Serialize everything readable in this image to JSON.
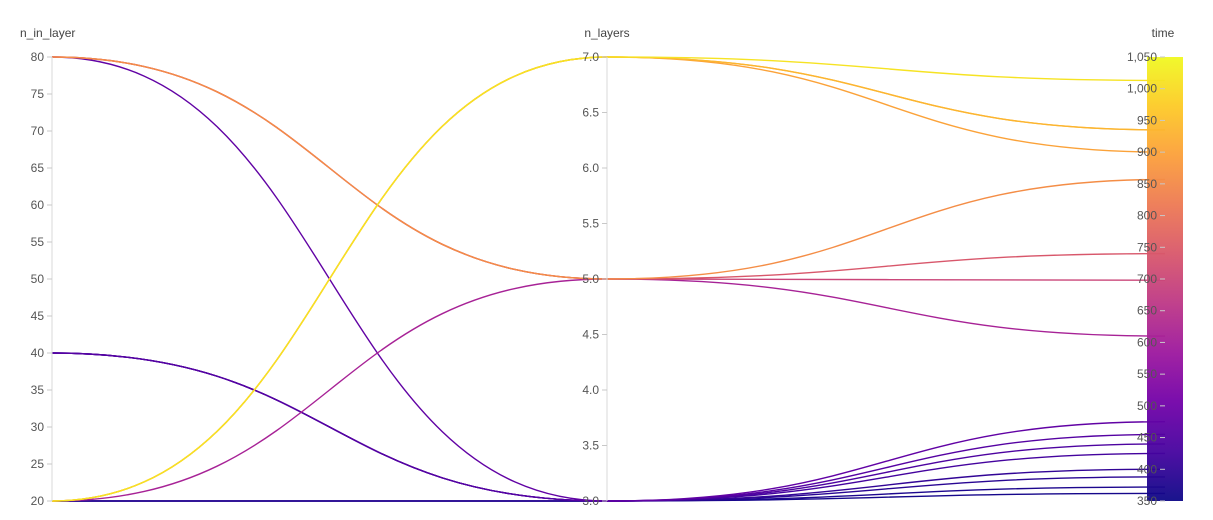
{
  "chart_data": {
    "type": "parallel_coordinates",
    "axes": [
      {
        "name": "n_in_layer",
        "range": [
          20,
          80
        ],
        "ticks": [
          "20",
          "25",
          "30",
          "35",
          "40",
          "45",
          "50",
          "55",
          "60",
          "65",
          "70",
          "75",
          "80"
        ]
      },
      {
        "name": "n_layers",
        "range": [
          3,
          7
        ],
        "ticks": [
          "3.0",
          "3.5",
          "4.0",
          "4.5",
          "5.0",
          "5.5",
          "6.0",
          "6.5",
          "7.0"
        ]
      },
      {
        "name": "time",
        "range": [
          350,
          1050
        ],
        "ticks": [
          "350",
          "400",
          "450",
          "500",
          "550",
          "600",
          "650",
          "700",
          "750",
          "800",
          "850",
          "900",
          "950",
          "1,000",
          "1,050"
        ],
        "colorbar": true
      }
    ],
    "color_scale": [
      "#0d0887",
      "#46039f",
      "#7201a8",
      "#9c179e",
      "#bd3786",
      "#d8576b",
      "#ed7953",
      "#fb9f3a",
      "#fdca26",
      "#f0f921"
    ],
    "records": [
      {
        "n_in_layer": 20,
        "n_layers": 7,
        "time": 1013
      },
      {
        "n_in_layer": 20,
        "n_layers": 7,
        "time": 935
      },
      {
        "n_in_layer": 20,
        "n_layers": 7,
        "time": 935
      },
      {
        "n_in_layer": 20,
        "n_layers": 7,
        "time": 900
      },
      {
        "n_in_layer": 80,
        "n_layers": 5,
        "time": 857
      },
      {
        "n_in_layer": 80,
        "n_layers": 5,
        "time": 740
      },
      {
        "n_in_layer": 80,
        "n_layers": 5,
        "time": 698
      },
      {
        "n_in_layer": 20,
        "n_layers": 5,
        "time": 610
      },
      {
        "n_in_layer": 80,
        "n_layers": 3,
        "time": 475
      },
      {
        "n_in_layer": 40,
        "n_layers": 3,
        "time": 455
      },
      {
        "n_in_layer": 40,
        "n_layers": 3,
        "time": 440
      },
      {
        "n_in_layer": 40,
        "n_layers": 3,
        "time": 425
      },
      {
        "n_in_layer": 40,
        "n_layers": 3,
        "time": 400
      },
      {
        "n_in_layer": 20,
        "n_layers": 3,
        "time": 388
      },
      {
        "n_in_layer": 20,
        "n_layers": 3,
        "time": 372
      },
      {
        "n_in_layer": 20,
        "n_layers": 3,
        "time": 362
      }
    ]
  }
}
